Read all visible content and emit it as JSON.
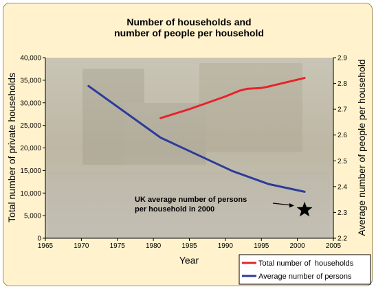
{
  "chart_data": {
    "type": "line",
    "title_lines": [
      "Number of households and",
      "number of people per household"
    ],
    "xlabel": "Year",
    "ylabel_left": "Total number of private households",
    "ylabel_right": "Average number of people per household",
    "xlim": [
      1965,
      2005
    ],
    "x_ticks": [
      1965,
      1970,
      1975,
      1980,
      1985,
      1990,
      1995,
      2000,
      2005
    ],
    "ylim_left": [
      0,
      40000
    ],
    "y_ticks_left": [
      "0",
      "5,000",
      "10,000",
      "15,000",
      "20,000",
      "25,000",
      "30,000",
      "35,000",
      "40,000"
    ],
    "ylim_right": [
      2.2,
      2.9
    ],
    "y_ticks_right": [
      "2.2",
      "2.3",
      "2.4",
      "2.5",
      "2.6",
      "2.7",
      "2.8",
      "2.9"
    ],
    "grid": false,
    "legend_position": "bottom-right",
    "series": [
      {
        "name": "Total number of  households",
        "axis": "left",
        "color": "#e8222a",
        "x": [
          1981,
          1985,
          1990,
          1992,
          1993,
          1995,
          1996,
          2001
        ],
        "y": [
          26600,
          28600,
          31400,
          32700,
          33100,
          33300,
          33600,
          35500
        ]
      },
      {
        "name": "Average number of persons",
        "axis": "right",
        "color": "#2b3b9c",
        "x": [
          1971,
          1981,
          1991,
          1996,
          2001
        ],
        "y": [
          2.79,
          2.59,
          2.46,
          2.41,
          2.38
        ]
      }
    ],
    "annotations": [
      {
        "lines": [
          "UK average number of persons",
          "per household in 2000"
        ],
        "marker": "star-icon",
        "marker_x": 2001,
        "marker_y": 2.31
      }
    ]
  }
}
